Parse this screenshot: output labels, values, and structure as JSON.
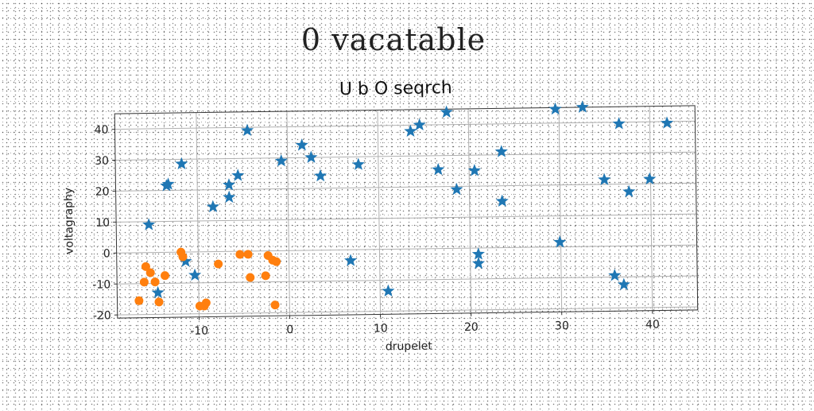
{
  "figure": {
    "suptitle": "0 vacatable"
  },
  "colors": {
    "series_stars": "#1f77b4",
    "series_dots": "#ff7f0e",
    "grid": "#b0b0b0",
    "axis": "#333333"
  },
  "chart_data": {
    "type": "scatter",
    "title": "U b O seqrch",
    "xlabel": "drupelet",
    "ylabel": "voltagraphy",
    "xlim": [
      -19,
      45
    ],
    "ylim": [
      -21,
      45
    ],
    "xticks": [
      -10,
      0,
      10,
      20,
      30,
      40
    ],
    "yticks": [
      -20,
      -10,
      0,
      10,
      20,
      30,
      40
    ],
    "xtick_labels": [
      "-10",
      "0",
      "10",
      "20",
      "30",
      "40"
    ],
    "ytick_labels": [
      "-20",
      "-10",
      "0",
      "10",
      "20",
      "30",
      "40"
    ],
    "grid": true,
    "legend": "none",
    "series": [
      {
        "marker": "star",
        "color": "#1f77b4",
        "points": [
          [
            -15.4,
            9
          ],
          [
            -14.5,
            -13
          ],
          [
            -13.4,
            21.5
          ],
          [
            -13.2,
            22
          ],
          [
            -11.7,
            28.5
          ],
          [
            -11.4,
            -3
          ],
          [
            -10.4,
            -7.5
          ],
          [
            -8.3,
            14.5
          ],
          [
            -6.5,
            17.5
          ],
          [
            -6.5,
            21.5
          ],
          [
            -5.5,
            24.5
          ],
          [
            -4.4,
            39
          ],
          [
            -0.7,
            29
          ],
          [
            1.6,
            34
          ],
          [
            2.6,
            30
          ],
          [
            3.6,
            24
          ],
          [
            6.8,
            -3.5
          ],
          [
            7.8,
            27.5
          ],
          [
            10.9,
            -13.5
          ],
          [
            13.6,
            38
          ],
          [
            14.6,
            40
          ],
          [
            16.6,
            25.5
          ],
          [
            17.6,
            44
          ],
          [
            18.6,
            19
          ],
          [
            20.6,
            25
          ],
          [
            20.9,
            -2
          ],
          [
            20.9,
            -5
          ],
          [
            23.6,
            31
          ],
          [
            23.6,
            15
          ],
          [
            29.6,
            44.5
          ],
          [
            29.9,
            1.5
          ],
          [
            32.6,
            45
          ],
          [
            34.9,
            21.5
          ],
          [
            35.9,
            -9.5
          ],
          [
            36.6,
            39.5
          ],
          [
            36.9,
            -12.5
          ],
          [
            37.6,
            17.5
          ],
          [
            39.9,
            21.5
          ],
          [
            41.9,
            39.5
          ]
        ]
      },
      {
        "marker": "circle",
        "color": "#ff7f0e",
        "points": [
          [
            -16.6,
            -15.5
          ],
          [
            -16.0,
            -9.5
          ],
          [
            -15.8,
            -4.5
          ],
          [
            -15.3,
            -6.5
          ],
          [
            -14.8,
            -9.5
          ],
          [
            -14.4,
            -16
          ],
          [
            -13.7,
            -7.5
          ],
          [
            -11.9,
            0
          ],
          [
            -11.7,
            -1.5
          ],
          [
            -9.9,
            -17.5
          ],
          [
            -9.4,
            -17.5
          ],
          [
            -9.2,
            -16.5
          ],
          [
            -7.8,
            -4
          ],
          [
            -5.4,
            -1
          ],
          [
            -4.5,
            -1
          ],
          [
            -4.3,
            -8.5
          ],
          [
            -2.6,
            -8
          ],
          [
            -2.3,
            -1.5
          ],
          [
            -1.8,
            -3
          ],
          [
            -1.4,
            -3.5
          ],
          [
            -1.6,
            -17.5
          ]
        ]
      }
    ]
  }
}
